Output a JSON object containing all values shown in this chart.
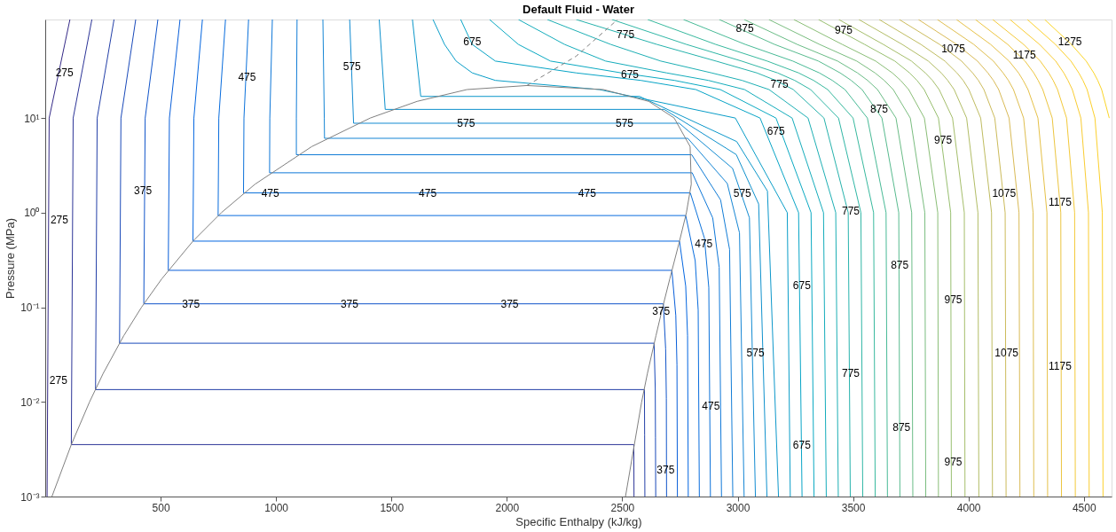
{
  "chart_data": {
    "type": "line",
    "title": "Default Fluid - Water",
    "xlabel": "Specific Enthalpy (kJ/kg)",
    "ylabel": "Pressure (MPa)",
    "log": "y",
    "xlim": [
      0,
      4620
    ],
    "ylim": [
      0.001,
      110
    ],
    "xticks": [
      500,
      1000,
      1500,
      2000,
      2500,
      3000,
      3500,
      4000,
      4500
    ],
    "yticks": [
      {
        "value": 0.001,
        "label": "10⁻³"
      },
      {
        "value": 0.01,
        "label": "10⁻²"
      },
      {
        "value": 0.1,
        "label": "10⁻¹"
      },
      {
        "value": 1,
        "label": "10⁰"
      },
      {
        "value": 10,
        "label": "10¹"
      }
    ],
    "series": [
      {
        "color": "#352a87",
        "x": [
          107,
          17,
          8
        ],
        "values": [
          110,
          10,
          0.001
        ]
      },
      {
        "color": "#2c3497",
        "x": [
          202,
          121,
          113,
          2550,
          2551
        ],
        "values": [
          110,
          10,
          0.00354,
          0.00354,
          0.001
        ]
      },
      {
        "color": "#233fa7",
        "x": [
          298,
          225,
          218,
          2596,
          2597,
          2598
        ],
        "values": [
          110,
          10,
          0.0135,
          0.0135,
          0.0045,
          0.001
        ]
      },
      {
        "color": "#1949b9",
        "x": [
          392,
          328,
          322,
          2638,
          2643,
          2644,
          2645
        ],
        "values": [
          110,
          10,
          0.0417,
          0.0417,
          0.0139,
          0.00417,
          0.001
        ]
      },
      {
        "color": "#1054c9",
        "x": [
          488,
          433,
          427,
          2678,
          2688,
          2691,
          2692
        ],
        "values": [
          110,
          10,
          0.1088,
          0.1088,
          0.0363,
          0.0109,
          0.001
        ]
      },
      {
        "color": "#085ed9",
        "x": [
          584,
          538,
          533,
          2715,
          2732,
          2737,
          2739
        ],
        "values": [
          110,
          10,
          0.2458,
          0.2458,
          0.0819,
          0.0246,
          0.001
        ]
      },
      {
        "color": "#0466e0",
        "x": [
          681,
          644,
          640,
          2748,
          2775,
          2783,
          2786
        ],
        "values": [
          110,
          10,
          0.5002,
          0.5002,
          0.1667,
          0.05,
          0.001
        ]
      },
      {
        "color": "#086cdd",
        "x": [
          781,
          752,
          749,
          2775,
          2816,
          2829,
          2834
        ],
        "values": [
          110,
          10,
          0.9322,
          0.9322,
          0.311,
          0.0932,
          0.001
        ]
      },
      {
        "color": "#0b71da",
        "x": [
          881,
          861,
          859,
          2795,
          2856,
          2875,
          2882
        ],
        "values": [
          110,
          10,
          1.617,
          1.617,
          0.539,
          0.162,
          0.001
        ]
      },
      {
        "color": "#0e77d8",
        "x": [
          984,
          973,
          972,
          2803,
          2892,
          2920,
          2930
        ],
        "values": [
          110,
          10,
          2.639,
          2.639,
          0.88,
          0.264,
          0.001
        ]
      },
      {
        "color": "#117cd6",
        "x": [
          1091,
          1088,
          1088,
          2801,
          2926,
          2965,
          2979
        ],
        "values": [
          110,
          10,
          4.094,
          4.094,
          1.365,
          0.409,
          0.001
        ]
      },
      {
        "color": "#1485d4",
        "x": [
          1203,
          1209,
          1210,
          2784,
          2955,
          3008,
          3028
        ],
        "values": [
          110,
          10,
          6.107,
          6.107,
          2.036,
          0.611,
          0.001
        ]
      },
      {
        "color": "#128bd1",
        "x": [
          1319,
          1336,
          2747,
          2978,
          3051,
          3077
        ],
        "values": [
          110,
          8.812,
          8.812,
          2.937,
          0.881,
          0.001
        ]
      },
      {
        "color": "#0f91cd",
        "x": [
          1447,
          1473,
          2682,
          2994,
          3091,
          3127
        ],
        "values": [
          110,
          12.34,
          12.34,
          4.11,
          1.234,
          0.001
        ]
      },
      {
        "color": "#0c97ca",
        "x": [
          1591,
          1627,
          2575,
          2996,
          3129,
          3177
        ],
        "values": [
          110,
          16.93,
          16.93,
          5.64,
          1.693,
          0.001
        ]
      },
      {
        "color": "#099dc8",
        "x": [
          1680,
          1730,
          1780,
          1850,
          1950,
          2400,
          2990,
          3215,
          3228
        ],
        "values": [
          110,
          60,
          40,
          30,
          25,
          20,
          10,
          1,
          0.001
        ]
      },
      {
        "color": "#07a4c6",
        "x": [
          1800,
          1850,
          1950,
          2300,
          2580,
          2819,
          3097,
          3264,
          3279
        ],
        "values": [
          110,
          60,
          40,
          30,
          25,
          20,
          10,
          1,
          0.001
        ]
      },
      {
        "color": "#0aa9c2",
        "x": [
          1925,
          2050,
          2189,
          2496,
          2726,
          2925,
          3166,
          3318,
          3331
        ],
        "values": [
          110,
          60,
          40,
          30,
          25,
          20,
          10,
          1,
          0.001
        ]
      },
      {
        "color": "#14acbb",
        "x": [
          2050,
          2250,
          2428,
          2692,
          2873,
          3030,
          3236,
          3372,
          3384
        ],
        "values": [
          110,
          60,
          40,
          30,
          25,
          20,
          10,
          1,
          0.001
        ]
      },
      {
        "color": "#1dafb4",
        "x": [
          2175,
          2450,
          2667,
          2887,
          3019,
          3136,
          3305,
          3425,
          3436
        ],
        "values": [
          110,
          60,
          40,
          30,
          25,
          20,
          10,
          1,
          0.001
        ]
      },
      {
        "color": "#26b2ac",
        "x": [
          2300,
          2650,
          2906,
          3083,
          3165,
          3241,
          3374,
          3479,
          3488
        ],
        "values": [
          110,
          60,
          40,
          30,
          25,
          20,
          10,
          1,
          0.001
        ]
      },
      {
        "color": "#2fb6a5",
        "x": [
          2455,
          2778,
          3017,
          3173,
          3247,
          3316,
          3437,
          3534,
          3542
        ],
        "values": [
          110,
          60,
          40,
          30,
          25,
          20,
          10,
          1,
          0.001
        ]
      },
      {
        "color": "#38b99e",
        "x": [
          2610,
          2905,
          3128,
          3264,
          3329,
          3390,
          3500,
          3589,
          3596
        ],
        "values": [
          110,
          60,
          40,
          30,
          25,
          20,
          10,
          1,
          0.001
        ]
      },
      {
        "color": "#48ba96",
        "x": [
          2765,
          3033,
          3239,
          3354,
          3410,
          3465,
          3562,
          3643,
          3649
        ],
        "values": [
          110,
          60,
          40,
          30,
          25,
          20,
          10,
          1,
          0.001
        ]
      },
      {
        "color": "#58bb8f",
        "x": [
          2920,
          3160,
          3350,
          3444,
          3492,
          3539,
          3625,
          3698,
          3703
        ],
        "values": [
          110,
          60,
          40,
          30,
          25,
          20,
          10,
          1,
          0.001
        ]
      },
      {
        "color": "#6abc86",
        "x": [
          3028,
          3258,
          3433,
          3519,
          3563,
          3606,
          3686,
          3754,
          3759
        ],
        "values": [
          110,
          60,
          40,
          30,
          25,
          20,
          10,
          1,
          0.001
        ]
      },
      {
        "color": "#7abd7f",
        "x": [
          3135,
          3355,
          3516,
          3595,
          3635,
          3674,
          3748,
          3811,
          3815
        ],
        "values": [
          110,
          60,
          40,
          30,
          25,
          20,
          10,
          1,
          0.001
        ]
      },
      {
        "color": "#8abe77",
        "x": [
          3243,
          3453,
          3598,
          3670,
          3706,
          3741,
          3809,
          3867,
          3870
        ],
        "values": [
          110,
          60,
          40,
          30,
          25,
          20,
          10,
          1,
          0.001
        ]
      },
      {
        "color": "#98bf70",
        "x": [
          3350,
          3550,
          3681,
          3745,
          3777,
          3808,
          3870,
          3923,
          3926
        ],
        "values": [
          110,
          60,
          40,
          30,
          25,
          20,
          10,
          1,
          0.001
        ]
      },
      {
        "color": "#a5be6b",
        "x": [
          3438,
          3631,
          3753,
          3813,
          3844,
          3873,
          3931,
          3982,
          3985
        ],
        "values": [
          110,
          60,
          40,
          30,
          25,
          20,
          10,
          1,
          0.001
        ]
      },
      {
        "color": "#b2bd66",
        "x": [
          3525,
          3713,
          3826,
          3882,
          3910,
          3938,
          3992,
          4041,
          4045
        ],
        "values": [
          110,
          60,
          40,
          30,
          25,
          20,
          10,
          1,
          0.001
        ]
      },
      {
        "color": "#bfbc60",
        "x": [
          3613,
          3794,
          3898,
          3950,
          3977,
          4002,
          4053,
          4100,
          4104
        ],
        "values": [
          110,
          60,
          40,
          30,
          25,
          20,
          10,
          1,
          0.001
        ]
      },
      {
        "color": "#ccbb5b",
        "x": [
          3700,
          3875,
          3970,
          4018,
          4043,
          4067,
          4114,
          4159,
          4163
        ],
        "values": [
          110,
          60,
          40,
          30,
          25,
          20,
          10,
          1,
          0.001
        ]
      },
      {
        "color": "#d9ba56",
        "x": [
          3783,
          3949,
          4039,
          4084,
          4108,
          4131,
          4176,
          4219,
          4223
        ],
        "values": [
          110,
          60,
          40,
          30,
          25,
          20,
          10,
          1,
          0.001
        ]
      },
      {
        "color": "#dfbe4f",
        "x": [
          3865,
          4023,
          4108,
          4150,
          4173,
          4195,
          4239,
          4280,
          4283
        ],
        "values": [
          110,
          60,
          40,
          30,
          25,
          20,
          10,
          1,
          0.001
        ]
      },
      {
        "color": "#e6c148",
        "x": [
          3948,
          4096,
          4176,
          4217,
          4237,
          4258,
          4301,
          4340,
          4343
        ],
        "values": [
          110,
          60,
          40,
          30,
          25,
          20,
          10,
          1,
          0.001
        ]
      },
      {
        "color": "#ecc540",
        "x": [
          4030,
          4170,
          4245,
          4283,
          4302,
          4322,
          4363,
          4400,
          4403
        ],
        "values": [
          110,
          60,
          40,
          30,
          25,
          20,
          10,
          1,
          0.001
        ]
      },
      {
        "color": "#f3c939",
        "x": [
          4105,
          4239,
          4311,
          4348,
          4367,
          4386,
          4425,
          4460,
          4463
        ],
        "values": [
          110,
          60,
          40,
          30,
          25,
          20,
          10,
          1,
          0.001
        ]
      },
      {
        "color": "#f9cc32",
        "x": [
          4180,
          4308,
          4378,
          4413,
          4431,
          4450,
          4487,
          4520,
          4523
        ],
        "values": [
          110,
          60,
          40,
          30,
          25,
          20,
          10,
          1,
          0.001
        ]
      },
      {
        "color": "#fcd02c",
        "x": [
          4255,
          4377,
          4444,
          4478,
          4496,
          4514,
          4548,
          4580,
          4583
        ],
        "values": [
          110,
          60,
          40,
          30,
          25,
          20,
          10,
          1,
          0.001
        ]
      },
      {
        "color": "#fbd529",
        "x": [
          4330,
          4446,
          4510,
          4543,
          4560,
          4577,
          4610
        ],
        "values": [
          110,
          60,
          40,
          30,
          25,
          20,
          10
        ]
      },
      {
        "color": "#808080",
        "x": [
          29,
          113,
          192,
          251,
          340,
          417,
          505,
          640,
          763,
          909,
          1155,
          1408,
          1611,
          1827,
          2087,
          2418,
          2615,
          2725,
          2794,
          2799,
          2778,
          2748,
          2706,
          2675,
          2646,
          2609,
          2584,
          2514
        ],
        "values": [
          0.001,
          0.00354,
          0.01,
          0.02,
          0.05,
          0.1,
          0.2,
          0.5,
          1,
          2,
          5,
          10,
          15,
          20,
          22.064,
          20,
          15,
          10,
          5,
          2,
          1,
          0.5,
          0.2,
          0.1,
          0.05,
          0.02,
          0.01,
          0.001
        ]
      },
      {
        "color": "#808080",
        "line_style": "dashed",
        "x": [
          2087,
          2300,
          2480
        ],
        "values": [
          22.064,
          45,
          110
        ]
      }
    ],
    "annotations": [
      {
        "text": "275",
        "x": 37,
        "y": 30
      },
      {
        "text": "475",
        "x": 874,
        "y": 27
      },
      {
        "text": "575",
        "x": 1329,
        "y": 35
      },
      {
        "text": "675",
        "x": 1850,
        "y": 64
      },
      {
        "text": "775",
        "x": 2514,
        "y": 77
      },
      {
        "text": "875",
        "x": 3031,
        "y": 89
      },
      {
        "text": "975",
        "x": 3459,
        "y": 85
      },
      {
        "text": "1075",
        "x": 3934,
        "y": 54
      },
      {
        "text": "1175",
        "x": 4242,
        "y": 46
      },
      {
        "text": "1275",
        "x": 4440,
        "y": 64
      },
      {
        "text": "675",
        "x": 2533,
        "y": 29
      },
      {
        "text": "775",
        "x": 3181,
        "y": 23
      },
      {
        "text": "875",
        "x": 3613,
        "y": 12.5
      },
      {
        "text": "975",
        "x": 3890,
        "y": 5.8
      },
      {
        "text": "675",
        "x": 3166,
        "y": 7.2
      },
      {
        "text": "575",
        "x": 1823,
        "y": 8.8
      },
      {
        "text": "575",
        "x": 2510,
        "y": 8.8
      },
      {
        "text": "475",
        "x": 975,
        "y": 1.617
      },
      {
        "text": "475",
        "x": 1657,
        "y": 1.617
      },
      {
        "text": "475",
        "x": 2348,
        "y": 1.617
      },
      {
        "text": "375",
        "x": 631,
        "y": 0.1088
      },
      {
        "text": "375",
        "x": 1318,
        "y": 0.1088
      },
      {
        "text": "375",
        "x": 2012,
        "y": 0.1088
      },
      {
        "text": "375",
        "x": 423,
        "y": 1.7
      },
      {
        "text": "275",
        "x": 15,
        "y": 0.84
      },
      {
        "text": "275",
        "x": 11,
        "y": 0.017
      },
      {
        "text": "575",
        "x": 3020,
        "y": 1.6
      },
      {
        "text": "1075",
        "x": 4154,
        "y": 1.6
      },
      {
        "text": "1175",
        "x": 4397,
        "y": 1.3
      },
      {
        "text": "775",
        "x": 3490,
        "y": 1.04
      },
      {
        "text": "475",
        "x": 2853,
        "y": 0.47
      },
      {
        "text": "375",
        "x": 2668,
        "y": 0.09
      },
      {
        "text": "675",
        "x": 3278,
        "y": 0.17
      },
      {
        "text": "875",
        "x": 3702,
        "y": 0.28
      },
      {
        "text": "975",
        "x": 3934,
        "y": 0.12
      },
      {
        "text": "1075",
        "x": 4165,
        "y": 0.033
      },
      {
        "text": "1175",
        "x": 4397,
        "y": 0.024
      },
      {
        "text": "575",
        "x": 3077,
        "y": 0.033
      },
      {
        "text": "775",
        "x": 3490,
        "y": 0.02
      },
      {
        "text": "475",
        "x": 2884,
        "y": 0.009
      },
      {
        "text": "875",
        "x": 3710,
        "y": 0.0054
      },
      {
        "text": "675",
        "x": 3278,
        "y": 0.0035
      },
      {
        "text": "975",
        "x": 3934,
        "y": 0.0023
      },
      {
        "text": "375",
        "x": 2688,
        "y": 0.0019
      }
    ]
  }
}
